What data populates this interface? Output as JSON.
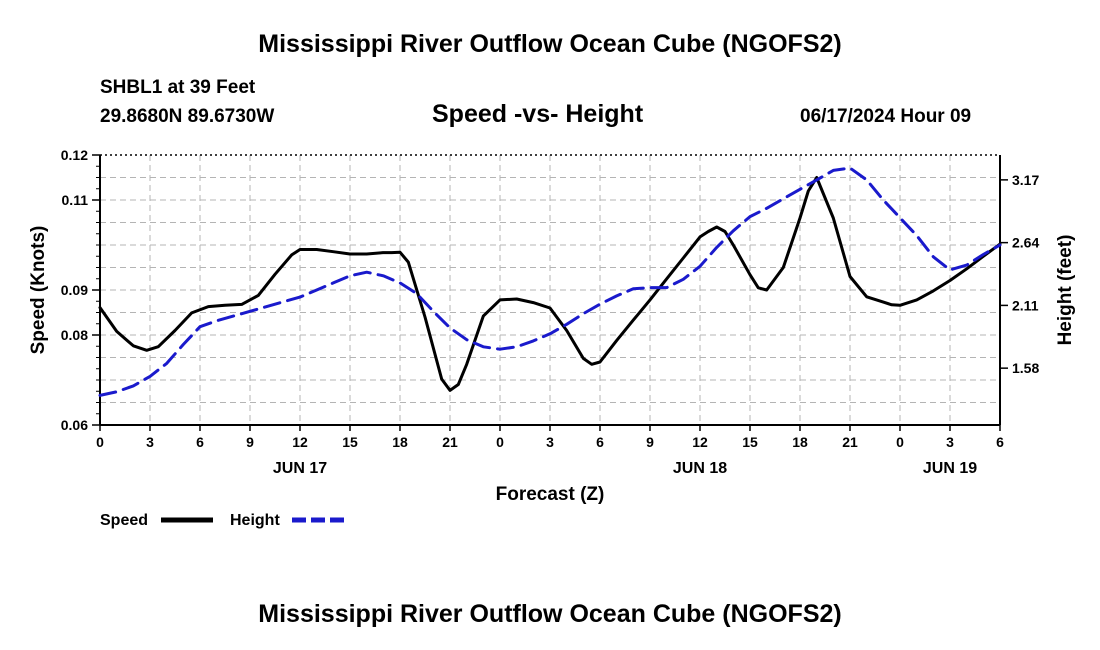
{
  "page": {
    "title_top": "Mississippi River Outflow Ocean Cube (NGOFS2)",
    "title_bottom": "Mississippi River Outflow Ocean Cube (NGOFS2)",
    "station": "SHBL1 at 39 Feet",
    "coords": "29.8680N  89.6730W",
    "subtitle": "Speed -vs- Height",
    "datetime": "06/17/2024 Hour 09"
  },
  "colors": {
    "speed": "#000000",
    "height": "#1a1acc",
    "grid": "#b4b4b4"
  },
  "chart_data": {
    "type": "line",
    "title": "Speed -vs- Height",
    "xlabel": "Forecast (Z)",
    "ylabel": "Speed (Knots)",
    "y2label": "Height (feet)",
    "xlim": [
      0,
      54
    ],
    "ylim": [
      0.06,
      0.12
    ],
    "y2lim": [
      1.1,
      3.38
    ],
    "x_ticks": [
      0,
      3,
      6,
      9,
      12,
      15,
      18,
      21,
      24,
      27,
      30,
      33,
      36,
      39,
      42,
      45,
      48,
      51,
      54
    ],
    "x_tick_labels": [
      "0",
      "3",
      "6",
      "9",
      "12",
      "15",
      "18",
      "21",
      "0",
      "3",
      "6",
      "9",
      "12",
      "15",
      "18",
      "21",
      "0",
      "3",
      "6"
    ],
    "date_labels": [
      {
        "x": 12,
        "label": "JUN 17"
      },
      {
        "x": 36,
        "label": "JUN 18"
      },
      {
        "x": 51,
        "label": "JUN 19"
      }
    ],
    "y_ticks": [
      0.06,
      0.08,
      0.09,
      0.11,
      0.12
    ],
    "y_tick_labels": [
      "0.06",
      "0.08",
      "0.09",
      "0.11",
      "0.12"
    ],
    "y2_ticks": [
      1.58,
      2.11,
      2.64,
      3.17
    ],
    "y2_tick_labels": [
      "1.58",
      "2.11",
      "2.64",
      "3.17"
    ],
    "legend": [
      {
        "name": "Speed",
        "style": "solid"
      },
      {
        "name": "Height",
        "style": "dashed"
      }
    ],
    "series": [
      {
        "name": "Speed",
        "axis": "left",
        "style": "solid",
        "x": [
          0,
          1,
          2,
          2.8,
          3.5,
          4.5,
          5.5,
          6.5,
          7.5,
          8.5,
          9.5,
          10.5,
          11.5,
          12,
          13,
          14,
          15,
          16,
          17,
          17.5,
          18,
          18.5,
          19.5,
          20.5,
          21,
          21.5,
          22,
          23,
          24,
          25,
          26,
          27,
          28,
          29,
          29.5,
          30,
          31,
          32,
          33,
          34,
          35,
          36,
          36.5,
          37,
          37.5,
          38,
          39,
          39.5,
          40,
          41,
          42,
          42.5,
          43,
          44,
          45,
          46,
          47,
          47.5,
          48,
          49,
          50,
          51,
          52,
          53,
          54
        ],
        "values": [
          0.0861,
          0.0808,
          0.0776,
          0.0766,
          0.0774,
          0.081,
          0.0849,
          0.0863,
          0.0866,
          0.0868,
          0.0888,
          0.0935,
          0.0978,
          0.099,
          0.099,
          0.0985,
          0.098,
          0.098,
          0.0983,
          0.0983,
          0.0984,
          0.0962,
          0.084,
          0.0702,
          0.0677,
          0.069,
          0.0735,
          0.0842,
          0.0878,
          0.088,
          0.0872,
          0.086,
          0.081,
          0.0748,
          0.0735,
          0.074,
          0.0788,
          0.0833,
          0.0878,
          0.0925,
          0.0971,
          0.1018,
          0.103,
          0.104,
          0.103,
          0.1,
          0.0934,
          0.0905,
          0.09,
          0.095,
          0.106,
          0.112,
          0.115,
          0.106,
          0.093,
          0.0885,
          0.0873,
          0.0867,
          0.0866,
          0.0878,
          0.0898,
          0.0921,
          0.0947,
          0.0975,
          0.1002
        ]
      },
      {
        "name": "Height",
        "axis": "right",
        "style": "dashed",
        "x": [
          0,
          1,
          2,
          3,
          4,
          5,
          6,
          7,
          8,
          9,
          10,
          11,
          12,
          13,
          14,
          15,
          16,
          17,
          18,
          19,
          20,
          21,
          22,
          23,
          24,
          25,
          26,
          27,
          28,
          29,
          30,
          31,
          32,
          33,
          34,
          35,
          36,
          37,
          38,
          39,
          40,
          41,
          42,
          43,
          44,
          45,
          46,
          47,
          48,
          49,
          50,
          51,
          52,
          53,
          54
        ],
        "values": [
          1.35,
          1.38,
          1.43,
          1.51,
          1.62,
          1.78,
          1.93,
          1.98,
          2.02,
          2.06,
          2.1,
          2.14,
          2.18,
          2.24,
          2.3,
          2.36,
          2.39,
          2.36,
          2.3,
          2.21,
          2.06,
          1.92,
          1.82,
          1.76,
          1.74,
          1.76,
          1.81,
          1.87,
          1.95,
          2.04,
          2.12,
          2.19,
          2.25,
          2.26,
          2.26,
          2.33,
          2.44,
          2.6,
          2.74,
          2.86,
          2.93,
          3.01,
          3.09,
          3.17,
          3.25,
          3.27,
          3.17,
          3.0,
          2.85,
          2.7,
          2.52,
          2.41,
          2.45,
          2.54,
          2.62
        ]
      }
    ]
  }
}
